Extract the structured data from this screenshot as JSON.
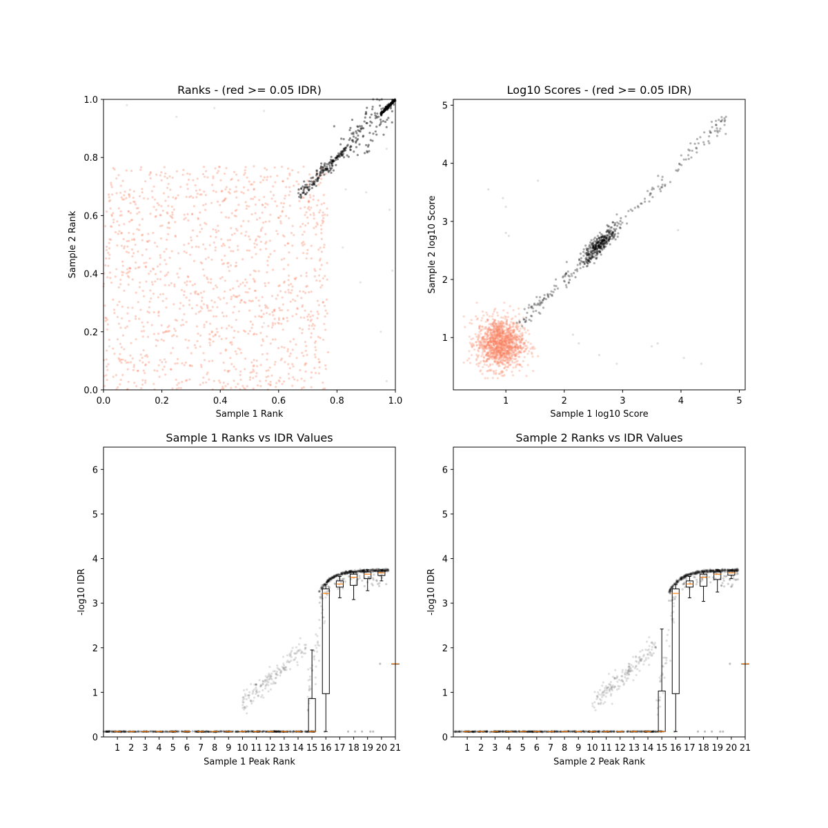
{
  "chart_data": [
    {
      "id": "ranks",
      "type": "scatter",
      "title": "Ranks - (red >= 0.05 IDR)",
      "xlabel": "Sample 1 Rank",
      "ylabel": "Sample 2 Rank",
      "xlim": [
        0.0,
        1.0
      ],
      "ylim": [
        0.0,
        1.0
      ],
      "xticks": [
        "0.0",
        "0.2",
        "0.4",
        "0.6",
        "0.8",
        "1.0"
      ],
      "yticks": [
        "0.0",
        "0.2",
        "0.4",
        "0.6",
        "0.8",
        "1.0"
      ],
      "grid": false,
      "point_colors": {
        "pass": "#000000",
        "fail": "#fa8060"
      },
      "series": [
        {
          "group": "fail",
          "count": 1300,
          "x_range": [
            0.0,
            0.77
          ],
          "y_range": [
            0.0,
            0.77
          ],
          "distribution": "uniform"
        },
        {
          "group": "pass",
          "count": 320,
          "x_range": [
            0.67,
            1.0
          ],
          "y_range": [
            0.67,
            1.0
          ],
          "distribution": "diagonal band"
        },
        {
          "group": "outlier",
          "points": [
            [
              0.08,
              0.98
            ],
            [
              0.25,
              0.94
            ],
            [
              0.38,
              0.97
            ],
            [
              0.55,
              0.96
            ],
            [
              0.83,
              0.69
            ],
            [
              0.88,
              0.37
            ],
            [
              0.9,
              0.68
            ],
            [
              0.95,
              0.2
            ],
            [
              0.97,
              0.03
            ],
            [
              0.98,
              0.62
            ],
            [
              0.82,
              0.49
            ],
            [
              0.02,
              0.15
            ],
            [
              0.55,
              0.23
            ],
            [
              0.97,
              0.83
            ],
            [
              0.99,
              0.41
            ]
          ]
        }
      ]
    },
    {
      "id": "scores",
      "type": "scatter",
      "title": "Log10 Scores - (red >= 0.05 IDR)",
      "xlabel": "Sample 1 log10 Score",
      "ylabel": "Sample 2 log10 Score",
      "xlim": [
        0.1,
        5.1
      ],
      "ylim": [
        0.1,
        5.1
      ],
      "xticks": [
        "1",
        "2",
        "3",
        "4",
        "5"
      ],
      "yticks": [
        "1",
        "2",
        "3",
        "4",
        "5"
      ],
      "grid": false,
      "point_colors": {
        "pass": "#000000",
        "fail": "#fa8060"
      },
      "series": [
        {
          "group": "fail",
          "count": 1300,
          "center": [
            0.9,
            0.9
          ],
          "spread": [
            0.2,
            0.22
          ]
        },
        {
          "group": "pass",
          "points_along": [
            [
              1.3,
              1.45
            ],
            [
              4.85,
              4.85
            ]
          ],
          "cluster_center": [
            2.6,
            2.62
          ],
          "count": 520
        },
        {
          "group": "outlier",
          "points": [
            [
              0.95,
              3.4
            ],
            [
              1.0,
              3.25
            ],
            [
              1.05,
              2.75
            ],
            [
              1.0,
              2.8
            ],
            [
              1.55,
              3.7
            ],
            [
              2.15,
              1.05
            ],
            [
              2.25,
              0.9
            ],
            [
              2.6,
              0.7
            ],
            [
              2.9,
              0.55
            ],
            [
              3.5,
              0.85
            ],
            [
              3.95,
              2.85
            ],
            [
              3.6,
              0.9
            ],
            [
              4.05,
              0.65
            ],
            [
              4.35,
              0.55
            ],
            [
              4.6,
              4.55
            ],
            [
              0.7,
              3.55
            ]
          ]
        }
      ]
    },
    {
      "id": "sample1-box",
      "type": "box",
      "title": "Sample 1 Ranks vs IDR Values",
      "xlabel": "Sample 1 Peak Rank",
      "ylabel": "-log10 IDR",
      "xlim": [
        0,
        21
      ],
      "ylim": [
        0,
        6.5
      ],
      "xticks": [
        "1",
        "2",
        "3",
        "4",
        "5",
        "6",
        "7",
        "8",
        "9",
        "10",
        "11",
        "12",
        "13",
        "14",
        "15",
        "16",
        "17",
        "18",
        "19",
        "20",
        "21"
      ],
      "yticks": [
        "0",
        "1",
        "2",
        "3",
        "4",
        "5",
        "6"
      ],
      "grid": false,
      "colors": {
        "box": "#000000",
        "median": "#ff7f0e",
        "points": "#000000"
      },
      "boxes": [
        {
          "pos": 1,
          "min": 0.12,
          "q1": 0.12,
          "median": 0.12,
          "q3": 0.12,
          "max": 0.12
        },
        {
          "pos": 2,
          "min": 0.12,
          "q1": 0.12,
          "median": 0.12,
          "q3": 0.12,
          "max": 0.12
        },
        {
          "pos": 3,
          "min": 0.12,
          "q1": 0.12,
          "median": 0.12,
          "q3": 0.12,
          "max": 0.12
        },
        {
          "pos": 4,
          "min": 0.12,
          "q1": 0.12,
          "median": 0.12,
          "q3": 0.12,
          "max": 0.12
        },
        {
          "pos": 5,
          "min": 0.12,
          "q1": 0.12,
          "median": 0.12,
          "q3": 0.12,
          "max": 0.12
        },
        {
          "pos": 6,
          "min": 0.12,
          "q1": 0.12,
          "median": 0.12,
          "q3": 0.12,
          "max": 0.12
        },
        {
          "pos": 7,
          "min": 0.12,
          "q1": 0.12,
          "median": 0.12,
          "q3": 0.12,
          "max": 0.12
        },
        {
          "pos": 8,
          "min": 0.12,
          "q1": 0.12,
          "median": 0.12,
          "q3": 0.12,
          "max": 0.12
        },
        {
          "pos": 9,
          "min": 0.12,
          "q1": 0.12,
          "median": 0.12,
          "q3": 0.12,
          "max": 0.12
        },
        {
          "pos": 10,
          "min": 0.12,
          "q1": 0.12,
          "median": 0.12,
          "q3": 0.12,
          "max": 0.12
        },
        {
          "pos": 11,
          "min": 0.12,
          "q1": 0.12,
          "median": 0.12,
          "q3": 0.12,
          "max": 0.12
        },
        {
          "pos": 12,
          "min": 0.12,
          "q1": 0.12,
          "median": 0.12,
          "q3": 0.12,
          "max": 0.12
        },
        {
          "pos": 13,
          "min": 0.12,
          "q1": 0.12,
          "median": 0.12,
          "q3": 0.12,
          "max": 0.12
        },
        {
          "pos": 14,
          "min": 0.12,
          "q1": 0.12,
          "median": 0.12,
          "q3": 0.12,
          "max": 0.12
        },
        {
          "pos": 15,
          "min": 0.12,
          "q1": 0.12,
          "median": 0.12,
          "q3": 0.86,
          "max": 1.95
        },
        {
          "pos": 16,
          "min": 0.12,
          "q1": 0.97,
          "median": 3.22,
          "q3": 3.32,
          "max": 3.42
        },
        {
          "pos": 17,
          "min": 3.12,
          "q1": 3.36,
          "median": 3.43,
          "q3": 3.5,
          "max": 3.6
        },
        {
          "pos": 18,
          "min": 3.08,
          "q1": 3.4,
          "median": 3.58,
          "q3": 3.65,
          "max": 3.7
        },
        {
          "pos": 19,
          "min": 3.28,
          "q1": 3.55,
          "median": 3.65,
          "q3": 3.7,
          "max": 3.75
        },
        {
          "pos": 20,
          "min": 3.5,
          "q1": 3.62,
          "median": 3.68,
          "q3": 3.72,
          "max": 3.75
        },
        {
          "pos": 21,
          "min": 1.64,
          "q1": 1.64,
          "median": 1.64,
          "q3": 1.64,
          "max": 1.64
        }
      ]
    },
    {
      "id": "sample2-box",
      "type": "box",
      "title": "Sample 2 Ranks vs IDR Values",
      "xlabel": "Sample 2 Peak Rank",
      "ylabel": "-log10 IDR",
      "xlim": [
        0,
        21
      ],
      "ylim": [
        0,
        6.5
      ],
      "xticks": [
        "1",
        "2",
        "3",
        "4",
        "5",
        "6",
        "7",
        "8",
        "9",
        "10",
        "11",
        "12",
        "13",
        "14",
        "15",
        "16",
        "17",
        "18",
        "19",
        "20",
        "21"
      ],
      "yticks": [
        "0",
        "1",
        "2",
        "3",
        "4",
        "5",
        "6"
      ],
      "grid": false,
      "colors": {
        "box": "#000000",
        "median": "#ff7f0e",
        "points": "#000000"
      },
      "boxes": [
        {
          "pos": 1,
          "min": 0.12,
          "q1": 0.12,
          "median": 0.12,
          "q3": 0.12,
          "max": 0.12
        },
        {
          "pos": 2,
          "min": 0.12,
          "q1": 0.12,
          "median": 0.12,
          "q3": 0.12,
          "max": 0.12
        },
        {
          "pos": 3,
          "min": 0.12,
          "q1": 0.12,
          "median": 0.12,
          "q3": 0.12,
          "max": 0.12
        },
        {
          "pos": 4,
          "min": 0.12,
          "q1": 0.12,
          "median": 0.12,
          "q3": 0.12,
          "max": 0.12
        },
        {
          "pos": 5,
          "min": 0.12,
          "q1": 0.12,
          "median": 0.12,
          "q3": 0.12,
          "max": 0.12
        },
        {
          "pos": 6,
          "min": 0.12,
          "q1": 0.12,
          "median": 0.12,
          "q3": 0.12,
          "max": 0.12
        },
        {
          "pos": 7,
          "min": 0.12,
          "q1": 0.12,
          "median": 0.12,
          "q3": 0.12,
          "max": 0.12
        },
        {
          "pos": 8,
          "min": 0.12,
          "q1": 0.12,
          "median": 0.12,
          "q3": 0.12,
          "max": 0.12
        },
        {
          "pos": 9,
          "min": 0.12,
          "q1": 0.12,
          "median": 0.12,
          "q3": 0.12,
          "max": 0.12
        },
        {
          "pos": 10,
          "min": 0.12,
          "q1": 0.12,
          "median": 0.12,
          "q3": 0.12,
          "max": 0.12
        },
        {
          "pos": 11,
          "min": 0.12,
          "q1": 0.12,
          "median": 0.12,
          "q3": 0.12,
          "max": 0.12
        },
        {
          "pos": 12,
          "min": 0.12,
          "q1": 0.12,
          "median": 0.12,
          "q3": 0.12,
          "max": 0.12
        },
        {
          "pos": 13,
          "min": 0.12,
          "q1": 0.12,
          "median": 0.12,
          "q3": 0.12,
          "max": 0.12
        },
        {
          "pos": 14,
          "min": 0.12,
          "q1": 0.12,
          "median": 0.12,
          "q3": 0.12,
          "max": 0.12
        },
        {
          "pos": 15,
          "min": 0.12,
          "q1": 0.12,
          "median": 0.12,
          "q3": 1.03,
          "max": 2.42
        },
        {
          "pos": 16,
          "min": 0.12,
          "q1": 0.97,
          "median": 3.22,
          "q3": 3.32,
          "max": 3.42
        },
        {
          "pos": 17,
          "min": 3.12,
          "q1": 3.36,
          "median": 3.43,
          "q3": 3.5,
          "max": 3.6
        },
        {
          "pos": 18,
          "min": 3.04,
          "q1": 3.38,
          "median": 3.58,
          "q3": 3.65,
          "max": 3.7
        },
        {
          "pos": 19,
          "min": 3.25,
          "q1": 3.53,
          "median": 3.65,
          "q3": 3.7,
          "max": 3.75
        },
        {
          "pos": 20,
          "min": 3.55,
          "q1": 3.63,
          "median": 3.68,
          "q3": 3.72,
          "max": 3.75
        },
        {
          "pos": 21,
          "min": 1.64,
          "q1": 1.64,
          "median": 1.64,
          "q3": 1.64,
          "max": 1.64
        }
      ]
    }
  ]
}
